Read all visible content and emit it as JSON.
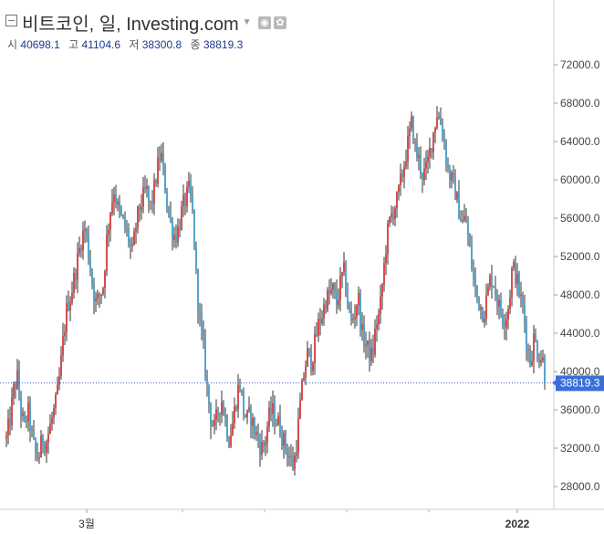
{
  "header": {
    "title": "비트코인, 일, Investing.com",
    "open_label": "시",
    "open_value": "40698.1",
    "high_label": "고",
    "high_value": "41104.6",
    "low_label": "저",
    "low_value": "38300.8",
    "close_label": "종",
    "close_value": "38819.3"
  },
  "chart_data": {
    "type": "candlestick",
    "y_ticks": [
      "28000.0",
      "32000.0",
      "36000.0",
      "40000.0",
      "44000.0",
      "48000.0",
      "52000.0",
      "56000.0",
      "60000.0",
      "64000.0",
      "68000.0",
      "72000.0"
    ],
    "x_tick_labels": [
      "3월",
      "2022"
    ],
    "ylim": [
      26000,
      73500
    ],
    "last_price": 38819.3,
    "last_price_label": "38819.3",
    "colors": {
      "up": "#cc2222",
      "down": "#2a8fc0",
      "wick": "#333333",
      "price_line": "#3355dd",
      "price_label_bg": "#3a6fd8"
    },
    "approx_closes": [
      33000,
      35000,
      38000,
      39500,
      36000,
      34000,
      36000,
      33500,
      31500,
      31000,
      33000,
      32500,
      34000,
      35500,
      37000,
      40000,
      44000,
      47000,
      48000,
      50000,
      52000,
      54000,
      55000,
      52000,
      49000,
      47000,
      48000,
      49000,
      54000,
      57000,
      59000,
      57000,
      56000,
      55000,
      54000,
      52000,
      55000,
      57000,
      58000,
      59000,
      57000,
      58500,
      61000,
      63000,
      60000,
      57000,
      55000,
      54000,
      55000,
      57000,
      58000,
      59000,
      56000,
      49000,
      45000,
      42000,
      38000,
      35000,
      34000,
      36000,
      37000,
      35000,
      33000,
      34500,
      37000,
      39000,
      36000,
      35000,
      35500,
      34000,
      33000,
      32000,
      32500,
      35000,
      36000,
      35000,
      34500,
      33000,
      32000,
      31000,
      30000,
      33000,
      37000,
      40000,
      42000,
      41000,
      43000,
      45000,
      46000,
      47500,
      48000,
      48500,
      47000,
      49000,
      50500,
      47500,
      45000,
      46000,
      48000,
      44000,
      43000,
      42000,
      41500,
      45000,
      46000,
      50000,
      54000,
      56000,
      57000,
      58000,
      60000,
      62000,
      64000,
      66000,
      63000,
      62000,
      60500,
      61000,
      63000,
      65000,
      67000,
      66000,
      64000,
      61000,
      60000,
      59000,
      57000,
      55500,
      56000,
      53000,
      50000,
      48000,
      47000,
      46000,
      48000,
      50000,
      49000,
      47000,
      46000,
      45500,
      47000,
      51000,
      50000,
      48000,
      46500,
      43000,
      41000,
      43500,
      42000,
      41500,
      40698.1
    ]
  }
}
